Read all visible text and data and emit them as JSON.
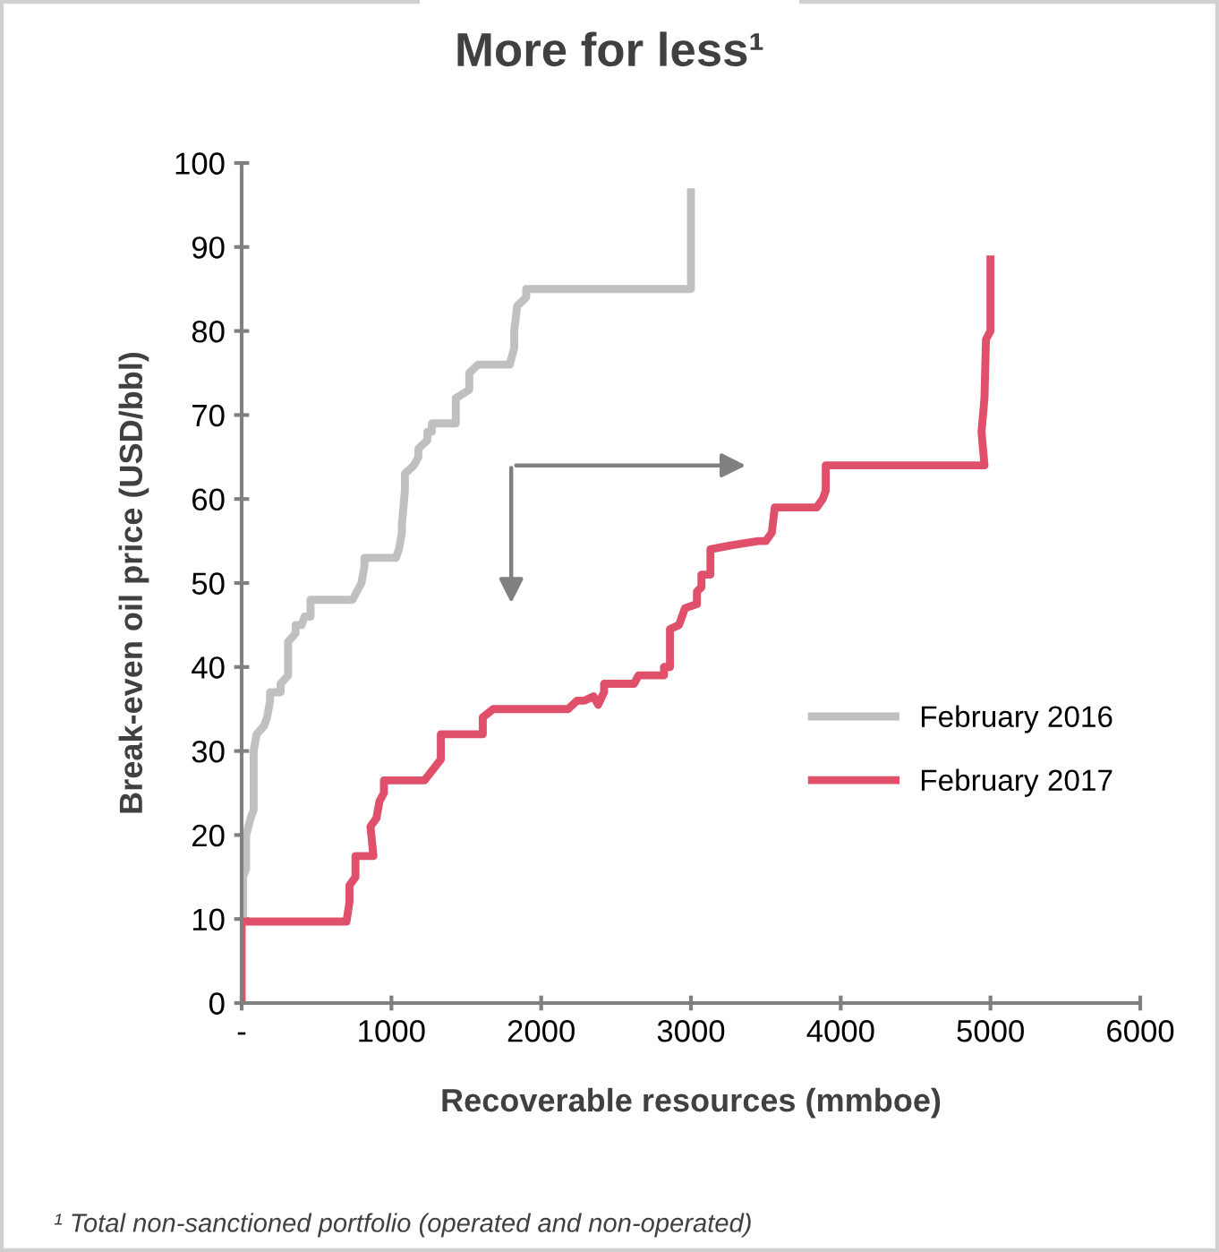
{
  "chart_data": {
    "type": "line",
    "title": "More for less¹",
    "xlabel": "Recoverable resources (mmboe)",
    "ylabel": "Break-even oil price (USD/bbl)",
    "annotations": [
      "¹ Total non-sanctioned portfolio (operated and non-operated)"
    ],
    "xlim": [
      0,
      6000
    ],
    "xticks": [
      {
        "value": 0,
        "label": "-"
      },
      1000,
      2000,
      3000,
      4000,
      5000,
      6000
    ],
    "ylim": [
      0,
      100
    ],
    "yticks": [
      0,
      10,
      20,
      30,
      40,
      50,
      60,
      70,
      80,
      90,
      100
    ],
    "grid": false,
    "legend": "right",
    "marker": "none",
    "line_style": "solid",
    "series": [
      {
        "name": "February 2016",
        "color": "#c0c0c0",
        "x": [
          10,
          10,
          30,
          30,
          60,
          80,
          80,
          100,
          150,
          170,
          190,
          190,
          260,
          260,
          310,
          310,
          360,
          360,
          400,
          420,
          460,
          460,
          740,
          800,
          820,
          820,
          1030,
          1050,
          1070,
          1070,
          1090,
          1090,
          1150,
          1180,
          1180,
          1240,
          1240,
          1270,
          1270,
          1430,
          1430,
          1520,
          1520,
          1580,
          1790,
          1820,
          1820,
          1840,
          1900,
          1900,
          3000,
          3000
        ],
        "values": [
          10,
          15,
          16,
          20,
          22,
          23,
          30,
          32,
          33,
          34,
          36,
          37,
          37,
          38,
          39,
          43,
          44,
          45,
          45,
          46,
          46,
          48,
          48,
          50,
          52,
          53,
          53,
          54,
          56,
          57,
          61,
          63,
          64,
          65,
          66,
          67,
          68,
          68,
          69,
          69,
          72,
          73,
          75,
          76,
          76,
          78,
          80,
          83,
          84,
          85,
          85,
          97
        ]
      },
      {
        "name": "February 2017",
        "color": "#e0506a",
        "x": [
          0,
          0,
          700,
          720,
          720,
          760,
          760,
          880,
          860,
          900,
          920,
          950,
          950,
          1220,
          1330,
          1330,
          1610,
          1610,
          1680,
          2180,
          2240,
          2290,
          2350,
          2380,
          2420,
          2420,
          2620,
          2650,
          2820,
          2820,
          2860,
          2860,
          2920,
          2960,
          3040,
          3040,
          3070,
          3070,
          3130,
          3130,
          3270,
          3450,
          3500,
          3540,
          3560,
          3840,
          3880,
          3900,
          3900,
          4960,
          4940,
          4950,
          4960,
          4970,
          5000,
          5000
        ],
        "values": [
          0,
          9.7,
          9.7,
          12,
          14,
          15,
          17.5,
          17.5,
          21,
          22,
          24,
          25,
          26.5,
          26.5,
          29,
          32,
          32,
          34,
          35,
          35,
          36,
          36,
          36.5,
          35.5,
          37,
          38,
          38,
          39,
          39,
          40,
          40,
          44.5,
          45,
          47,
          47.5,
          49,
          49.5,
          51,
          51,
          54,
          54.5,
          55,
          55,
          56,
          59,
          59,
          60,
          61,
          64,
          64,
          68,
          70,
          72,
          79,
          80,
          89
        ]
      }
    ]
  }
}
